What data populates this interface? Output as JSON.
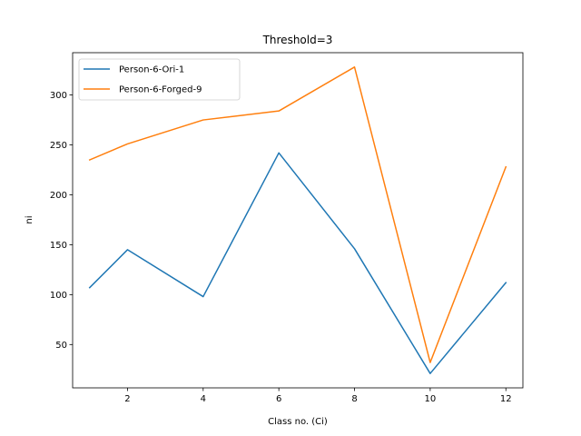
{
  "chart_data": {
    "type": "line",
    "title": "Threshold=3",
    "xlabel": "Class no. (Ci)",
    "ylabel": "ni",
    "xlim": [
      0.55,
      12.45
    ],
    "ylim": [
      6.6,
      342.4
    ],
    "xticks": [
      2,
      4,
      6,
      8,
      10,
      12
    ],
    "yticks": [
      50,
      100,
      150,
      200,
      250,
      300
    ],
    "x": [
      1,
      2,
      4,
      6,
      8,
      10,
      12
    ],
    "series": [
      {
        "name": "Person-6-Ori-1",
        "color": "#1f77b4",
        "values": [
          107,
          145,
          98,
          242,
          146,
          21,
          112
        ]
      },
      {
        "name": "Person-6-Forged-9",
        "color": "#ff7f0e",
        "values": [
          235,
          251,
          275,
          284,
          328,
          32,
          228
        ]
      }
    ],
    "legend": "top-left",
    "grid": false
  }
}
